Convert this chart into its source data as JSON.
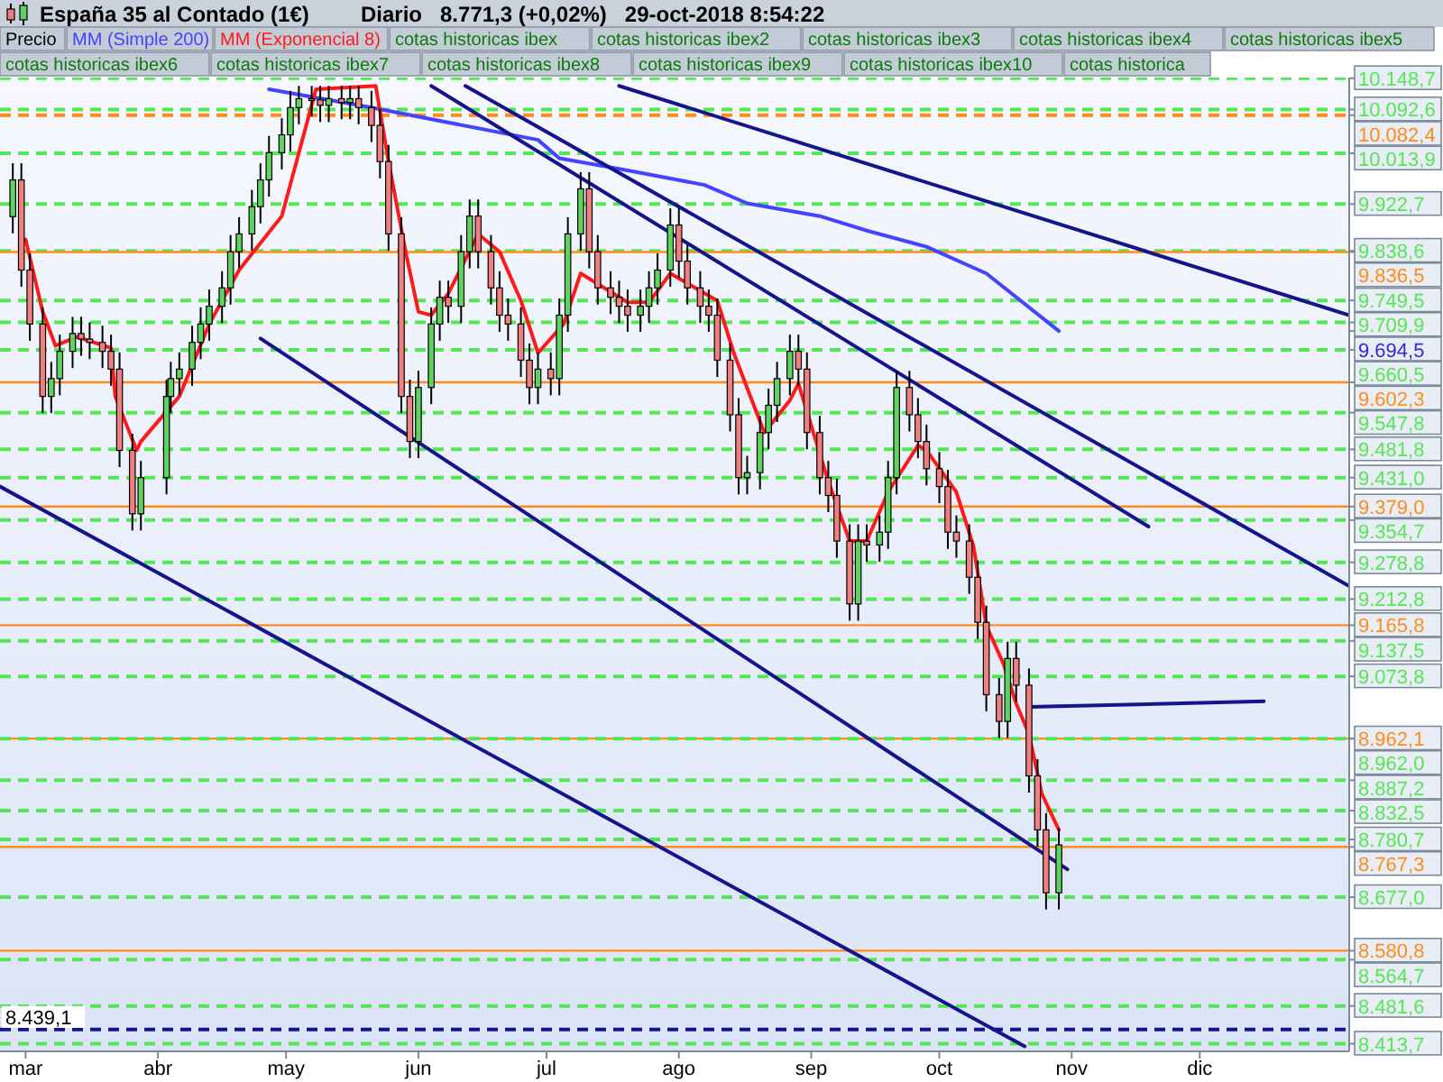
{
  "chart_data": {
    "type": "candlestick",
    "title": "España 35 al Contado (1€)",
    "subtitle": "Diario   8.771,3 (+0,02%)   29-oct-2018 8:54:22",
    "xlim": [
      "2018-02-23",
      "2019-01-05"
    ],
    "ylim": [
      8400,
      10150
    ],
    "xticks": [
      {
        "value": "2018-03-01",
        "label": "mar"
      },
      {
        "value": "2018-04-01",
        "label": "abr"
      },
      {
        "value": "2018-05-01",
        "label": "may"
      },
      {
        "value": "2018-06-01",
        "label": "jun"
      },
      {
        "value": "2018-07-01",
        "label": "jul"
      },
      {
        "value": "2018-08-01",
        "label": "ago"
      },
      {
        "value": "2018-09-01",
        "label": "sep"
      },
      {
        "value": "2018-10-01",
        "label": "oct"
      },
      {
        "value": "2018-11-01",
        "label": "nov"
      },
      {
        "value": "2018-12-01",
        "label": "dic"
      }
    ],
    "legend": "top",
    "series": [
      {
        "name": "Precio",
        "x": [
          "2018-02-26",
          "2018-02-28",
          "2018-03-02",
          "2018-03-05",
          "2018-03-07",
          "2018-03-09",
          "2018-03-12",
          "2018-03-14",
          "2018-03-16",
          "2018-03-19",
          "2018-03-21",
          "2018-03-23",
          "2018-03-26",
          "2018-03-28",
          "2018-04-03",
          "2018-04-04",
          "2018-04-06",
          "2018-04-09",
          "2018-04-11",
          "2018-04-13",
          "2018-04-16",
          "2018-04-18",
          "2018-04-20",
          "2018-04-23",
          "2018-04-25",
          "2018-04-27",
          "2018-04-30",
          "2018-05-02",
          "2018-05-04",
          "2018-05-07",
          "2018-05-09",
          "2018-05-11",
          "2018-05-14",
          "2018-05-16",
          "2018-05-18",
          "2018-05-21",
          "2018-05-23",
          "2018-05-25",
          "2018-05-28",
          "2018-05-30",
          "2018-06-01",
          "2018-06-04",
          "2018-06-06",
          "2018-06-08",
          "2018-06-11",
          "2018-06-13",
          "2018-06-15",
          "2018-06-18",
          "2018-06-20",
          "2018-06-22",
          "2018-06-25",
          "2018-06-27",
          "2018-06-29",
          "2018-07-02",
          "2018-07-04",
          "2018-07-06",
          "2018-07-09",
          "2018-07-11",
          "2018-07-13",
          "2018-07-16",
          "2018-07-18",
          "2018-07-20",
          "2018-07-23",
          "2018-07-25",
          "2018-07-27",
          "2018-07-30",
          "2018-08-01",
          "2018-08-03",
          "2018-08-06",
          "2018-08-08",
          "2018-08-10",
          "2018-08-13",
          "2018-08-15",
          "2018-08-17",
          "2018-08-20",
          "2018-08-22",
          "2018-08-24",
          "2018-08-27",
          "2018-08-29",
          "2018-08-31",
          "2018-09-03",
          "2018-09-05",
          "2018-09-07",
          "2018-09-10",
          "2018-09-12",
          "2018-09-14",
          "2018-09-17",
          "2018-09-19",
          "2018-09-21",
          "2018-09-24",
          "2018-09-26",
          "2018-09-28",
          "2018-10-01",
          "2018-10-03",
          "2018-10-05",
          "2018-10-08",
          "2018-10-10",
          "2018-10-12",
          "2018-10-15",
          "2018-10-17",
          "2018-10-19",
          "2018-10-22",
          "2018-10-24",
          "2018-10-26",
          "2018-10-29"
        ],
        "ohlc": [
          [
            9900,
            9996,
            9870,
            9966
          ],
          [
            9966,
            9996,
            9774,
            9804
          ],
          [
            9804,
            9834,
            9677,
            9707
          ],
          [
            9707,
            9737,
            9547,
            9577
          ],
          [
            9577,
            9639,
            9547,
            9609
          ],
          [
            9609,
            9688,
            9579,
            9658
          ],
          [
            9658,
            9720,
            9628,
            9690
          ],
          [
            9690,
            9720,
            9650,
            9680
          ],
          [
            9680,
            9710,
            9644,
            9674
          ],
          [
            9674,
            9704,
            9628,
            9658
          ],
          [
            9658,
            9688,
            9596,
            9626
          ],
          [
            9626,
            9656,
            9450,
            9480
          ],
          [
            9480,
            9510,
            9336,
            9366
          ],
          [
            9366,
            9461,
            9336,
            9431
          ],
          [
            9431,
            9607,
            9401,
            9577
          ],
          [
            9577,
            9639,
            9547,
            9609
          ],
          [
            9609,
            9656,
            9579,
            9626
          ],
          [
            9626,
            9704,
            9596,
            9674
          ],
          [
            9674,
            9737,
            9644,
            9707
          ],
          [
            9707,
            9769,
            9677,
            9739
          ],
          [
            9739,
            9802,
            9709,
            9772
          ],
          [
            9772,
            9867,
            9742,
            9837
          ],
          [
            9837,
            9899,
            9807,
            9869
          ],
          [
            9869,
            9948,
            9839,
            9918
          ],
          [
            9918,
            9996,
            9888,
            9966
          ],
          [
            9966,
            10045,
            9936,
            10015
          ],
          [
            10015,
            10077,
            9985,
            10047
          ],
          [
            10047,
            10126,
            10017,
            10096
          ],
          [
            10096,
            10135,
            10066,
            10112
          ],
          [
            10112,
            10135,
            10080,
            10110
          ],
          [
            10110,
            10135,
            10070,
            10100
          ],
          [
            10100,
            10135,
            10070,
            10112
          ],
          [
            10112,
            10135,
            10075,
            10105
          ],
          [
            10105,
            10135,
            10075,
            10112
          ],
          [
            10112,
            10135,
            10066,
            10096
          ],
          [
            10096,
            10126,
            10034,
            10064
          ],
          [
            10064,
            10094,
            9969,
            9999
          ],
          [
            9999,
            10029,
            9839,
            9869
          ],
          [
            9869,
            9899,
            9547,
            9577
          ],
          [
            9577,
            9607,
            9466,
            9496
          ],
          [
            9496,
            9623,
            9466,
            9593
          ],
          [
            9593,
            9737,
            9563,
            9707
          ],
          [
            9707,
            9785,
            9677,
            9755
          ],
          [
            9755,
            9785,
            9709,
            9739
          ],
          [
            9739,
            9867,
            9709,
            9837
          ],
          [
            9837,
            9931,
            9807,
            9901
          ],
          [
            9901,
            9931,
            9807,
            9837
          ],
          [
            9837,
            9867,
            9742,
            9772
          ],
          [
            9772,
            9802,
            9693,
            9723
          ],
          [
            9723,
            9753,
            9677,
            9707
          ],
          [
            9707,
            9737,
            9612,
            9642
          ],
          [
            9642,
            9672,
            9563,
            9593
          ],
          [
            9593,
            9656,
            9563,
            9626
          ],
          [
            9626,
            9656,
            9579,
            9609
          ],
          [
            9609,
            9753,
            9579,
            9723
          ],
          [
            9723,
            9899,
            9693,
            9869
          ],
          [
            9869,
            9980,
            9839,
            9950
          ],
          [
            9950,
            9980,
            9807,
            9837
          ],
          [
            9837,
            9867,
            9742,
            9772
          ],
          [
            9772,
            9802,
            9725,
            9755
          ],
          [
            9755,
            9785,
            9709,
            9739
          ],
          [
            9739,
            9769,
            9693,
            9723
          ],
          [
            9723,
            9769,
            9693,
            9739
          ],
          [
            9739,
            9802,
            9709,
            9772
          ],
          [
            9772,
            9834,
            9742,
            9804
          ],
          [
            9804,
            9915,
            9774,
            9885
          ],
          [
            9885,
            9915,
            9790,
            9820
          ],
          [
            9820,
            9850,
            9742,
            9772
          ],
          [
            9772,
            9802,
            9709,
            9739
          ],
          [
            9739,
            9769,
            9693,
            9723
          ],
          [
            9723,
            9753,
            9612,
            9642
          ],
          [
            9642,
            9672,
            9514,
            9544
          ],
          [
            9544,
            9574,
            9401,
            9431
          ],
          [
            9431,
            9470,
            9401,
            9440
          ],
          [
            9440,
            9542,
            9410,
            9512
          ],
          [
            9512,
            9591,
            9482,
            9561
          ],
          [
            9561,
            9639,
            9531,
            9609
          ],
          [
            9609,
            9688,
            9579,
            9658
          ],
          [
            9658,
            9688,
            9596,
            9626
          ],
          [
            9626,
            9656,
            9482,
            9512
          ],
          [
            9512,
            9542,
            9401,
            9431
          ],
          [
            9431,
            9461,
            9369,
            9399
          ],
          [
            9399,
            9429,
            9287,
            9317
          ],
          [
            9317,
            9347,
            9174,
            9204
          ],
          [
            9204,
            9347,
            9174,
            9317
          ],
          [
            9317,
            9347,
            9280,
            9310
          ],
          [
            9310,
            9363,
            9280,
            9333
          ],
          [
            9333,
            9461,
            9303,
            9431
          ],
          [
            9431,
            9623,
            9401,
            9593
          ],
          [
            9593,
            9623,
            9514,
            9544
          ],
          [
            9544,
            9574,
            9466,
            9496
          ],
          [
            9496,
            9526,
            9417,
            9447
          ],
          [
            9447,
            9477,
            9385,
            9415
          ],
          [
            9415,
            9445,
            9303,
            9333
          ],
          [
            9333,
            9363,
            9287,
            9317
          ],
          [
            9317,
            9347,
            9222,
            9252
          ],
          [
            9252,
            9282,
            9141,
            9171
          ],
          [
            9171,
            9201,
            9011,
            9041
          ],
          [
            9041,
            9071,
            8963,
            8993
          ],
          [
            8993,
            9136,
            8963,
            9106
          ],
          [
            9106,
            9136,
            9028,
            9058
          ],
          [
            9058,
            9088,
            8865,
            8895
          ],
          [
            8895,
            8925,
            8768,
            8798
          ],
          [
            8798,
            8828,
            8655,
            8685
          ],
          [
            8685,
            8801,
            8655,
            8771
          ]
        ]
      },
      {
        "name": "MM (Simple 200)",
        "type": "line",
        "color": "#4444ff",
        "x": [
          "2018-04-27",
          "2018-05-21",
          "2018-06-29",
          "2018-07-04",
          "2018-07-20",
          "2018-08-07",
          "2018-08-17",
          "2018-09-03",
          "2018-09-14",
          "2018-09-28",
          "2018-10-12",
          "2018-10-29"
        ],
        "values": [
          10129,
          10096,
          10038,
          10005,
          9983,
          9957,
          9924,
          9901,
          9875,
          9846,
          9798,
          9694.5
        ]
      },
      {
        "name": "MM (Exponencial 8)",
        "type": "line",
        "color": "#ff1a1a",
        "x": [
          "2018-03-01",
          "2018-03-05",
          "2018-03-08",
          "2018-03-13",
          "2018-03-21",
          "2018-03-22",
          "2018-03-27",
          "2018-03-28",
          "2018-04-06",
          "2018-04-13",
          "2018-04-20",
          "2018-04-30",
          "2018-05-08",
          "2018-05-22",
          "2018-05-25",
          "2018-05-29",
          "2018-06-01",
          "2018-06-04",
          "2018-06-08",
          "2018-06-15",
          "2018-06-20",
          "2018-06-25",
          "2018-06-29",
          "2018-07-05",
          "2018-07-09",
          "2018-07-20",
          "2018-07-25",
          "2018-07-30",
          "2018-08-10",
          "2018-08-14",
          "2018-08-21",
          "2018-08-27",
          "2018-08-29",
          "2018-09-05",
          "2018-09-10",
          "2018-09-14",
          "2018-09-19",
          "2018-09-26",
          "2018-09-28",
          "2018-10-05",
          "2018-10-09",
          "2018-10-12",
          "2018-10-16",
          "2018-10-19",
          "2018-10-22",
          "2018-10-25",
          "2018-10-29"
        ],
        "values": [
          9859,
          9729,
          9668,
          9684,
          9664,
          9577,
          9480,
          9496,
          9577,
          9707,
          9804,
          9901,
          10129,
          10135,
          9999,
          9837,
          9729,
          9723,
          9762,
          9869,
          9837,
          9749,
          9655,
          9707,
          9798,
          9746,
          9746,
          9798,
          9749,
          9652,
          9512,
          9570,
          9600,
          9424,
          9317,
          9317,
          9405,
          9489,
          9480,
          9405,
          9308,
          9165,
          9097,
          9025,
          8970,
          8863,
          8798
        ]
      },
      {
        "type": "line",
        "color": "#14148c",
        "x": [
          "2018-02-23",
          "2018-10-21"
        ],
        "values": [
          9415,
          8409
        ]
      },
      {
        "type": "line",
        "color": "#14148c",
        "x": [
          "2018-04-25",
          "2018-10-31"
        ],
        "values": [
          9681,
          8727
        ]
      },
      {
        "type": "line",
        "color": "#14148c",
        "x": [
          "2018-06-04",
          "2018-11-19"
        ],
        "values": [
          10135,
          9343
        ]
      },
      {
        "type": "line",
        "color": "#14148c",
        "x": [
          "2018-06-12",
          "2019-01-05"
        ],
        "values": [
          10135,
          9236
        ]
      },
      {
        "type": "line",
        "color": "#14148c",
        "x": [
          "2018-07-18",
          "2019-01-05"
        ],
        "values": [
          10135,
          9723
        ]
      },
      {
        "type": "line",
        "color": "#14148c",
        "x": [
          "2018-10-22",
          "2018-12-16"
        ],
        "values": [
          9019,
          9029
        ]
      }
    ],
    "ref_lines": [
      {
        "axis": "y",
        "value": 10148.7,
        "label": "10.148,7",
        "color": "#55e655",
        "line_style": "dashed"
      },
      {
        "axis": "y",
        "value": 10092.6,
        "label": "10.092,6",
        "color": "#55e655",
        "line_style": "dashed"
      },
      {
        "axis": "y",
        "value": 10082.4,
        "label": "10.082,4",
        "color": "#ff8c1a",
        "line_style": "dashed"
      },
      {
        "axis": "y",
        "value": 10013.9,
        "label": "10.013,9",
        "color": "#55e655",
        "line_style": "dashed"
      },
      {
        "axis": "y",
        "value": 9922.7,
        "label": "9.922,7",
        "color": "#55e655",
        "line_style": "dashed"
      },
      {
        "axis": "y",
        "value": 9838.6,
        "label": "9.838,6",
        "color": "#55e655",
        "line_style": "dashed"
      },
      {
        "axis": "y",
        "value": 9836.5,
        "label": "9.836,5",
        "color": "#ff8c1a",
        "line_style": "solid"
      },
      {
        "axis": "y",
        "value": 9749.5,
        "label": "9.749,5",
        "color": "#55e655",
        "line_style": "dashed"
      },
      {
        "axis": "y",
        "value": 9709.9,
        "label": "9.709,9",
        "color": "#55e655",
        "line_style": "dashed"
      },
      {
        "axis": "y",
        "value": 9660.5,
        "label": "9.660,5",
        "color": "#55e655",
        "line_style": "dashed"
      },
      {
        "axis": "y",
        "value": 9602.3,
        "label": "9.602,3",
        "color": "#ff8c1a",
        "line_style": "solid"
      },
      {
        "axis": "y",
        "value": 9547.8,
        "label": "9.547,8",
        "color": "#55e655",
        "line_style": "dashed"
      },
      {
        "axis": "y",
        "value": 9481.8,
        "label": "9.481,8",
        "color": "#55e655",
        "line_style": "dashed"
      },
      {
        "axis": "y",
        "value": 9431.0,
        "label": "9.431,0",
        "color": "#55e655",
        "line_style": "dashed"
      },
      {
        "axis": "y",
        "value": 9379.0,
        "label": "9.379,0",
        "color": "#ff8c1a",
        "line_style": "solid"
      },
      {
        "axis": "y",
        "value": 9354.7,
        "label": "9.354,7",
        "color": "#55e655",
        "line_style": "dashed"
      },
      {
        "axis": "y",
        "value": 9278.8,
        "label": "9.278,8",
        "color": "#55e655",
        "line_style": "dashed"
      },
      {
        "axis": "y",
        "value": 9212.8,
        "label": "9.212,8",
        "color": "#55e655",
        "line_style": "dashed"
      },
      {
        "axis": "y",
        "value": 9165.8,
        "label": "9.165,8",
        "color": "#ff8c1a",
        "line_style": "solid"
      },
      {
        "axis": "y",
        "value": 9137.5,
        "label": "9.137,5",
        "color": "#55e655",
        "line_style": "dashed"
      },
      {
        "axis": "y",
        "value": 9073.8,
        "label": "9.073,8",
        "color": "#55e655",
        "line_style": "dashed"
      },
      {
        "axis": "y",
        "value": 8962.1,
        "label": "8.962,1",
        "color": "#ff8c1a",
        "line_style": "solid"
      },
      {
        "axis": "y",
        "value": 8962.0,
        "label": "8.962,0",
        "color": "#55e655",
        "line_style": "dashed"
      },
      {
        "axis": "y",
        "value": 8887.2,
        "label": "8.887,2",
        "color": "#55e655",
        "line_style": "dashed"
      },
      {
        "axis": "y",
        "value": 8832.5,
        "label": "8.832,5",
        "color": "#55e655",
        "line_style": "dashed"
      },
      {
        "axis": "y",
        "value": 8780.7,
        "label": "8.780,7",
        "color": "#55e655",
        "line_style": "dashed"
      },
      {
        "axis": "y",
        "value": 8767.3,
        "label": "8.767,3",
        "color": "#ff8c1a",
        "line_style": "solid"
      },
      {
        "axis": "y",
        "value": 8677.0,
        "label": "8.677,0",
        "color": "#55e655",
        "line_style": "dashed"
      },
      {
        "axis": "y",
        "value": 8580.8,
        "label": "8.580,8",
        "color": "#ff8c1a",
        "line_style": "solid"
      },
      {
        "axis": "y",
        "value": 8564.7,
        "label": "8.564,7",
        "color": "#55e655",
        "line_style": "dashed"
      },
      {
        "axis": "y",
        "value": 8481.6,
        "label": "8.481,6",
        "color": "#55e655",
        "line_style": "dashed"
      },
      {
        "axis": "y",
        "value": 8439.1,
        "label": null,
        "color": "#14148c",
        "line_style": "dashed"
      },
      {
        "axis": "y",
        "value": 8413.7,
        "label": "8.413,7",
        "color": "#55e655",
        "line_style": "dashed"
      }
    ],
    "annotations": [
      "cotas historicas ibex",
      "cotas historicas ibex2",
      "cotas historicas ibex3",
      "cotas historicas ibex4",
      "cotas historicas ibex5",
      "cotas historicas ibex6",
      "cotas historicas ibex7",
      "cotas historicas ibex8",
      "cotas historicas ibex9",
      "cotas historicas ibex10",
      "cotas historica",
      {
        "text": "8.439,1",
        "x": "2018-02-23",
        "y": 8439.1
      },
      {
        "text": "9.694,5",
        "x": "2019-01-05",
        "y": 9694.5
      }
    ]
  }
}
